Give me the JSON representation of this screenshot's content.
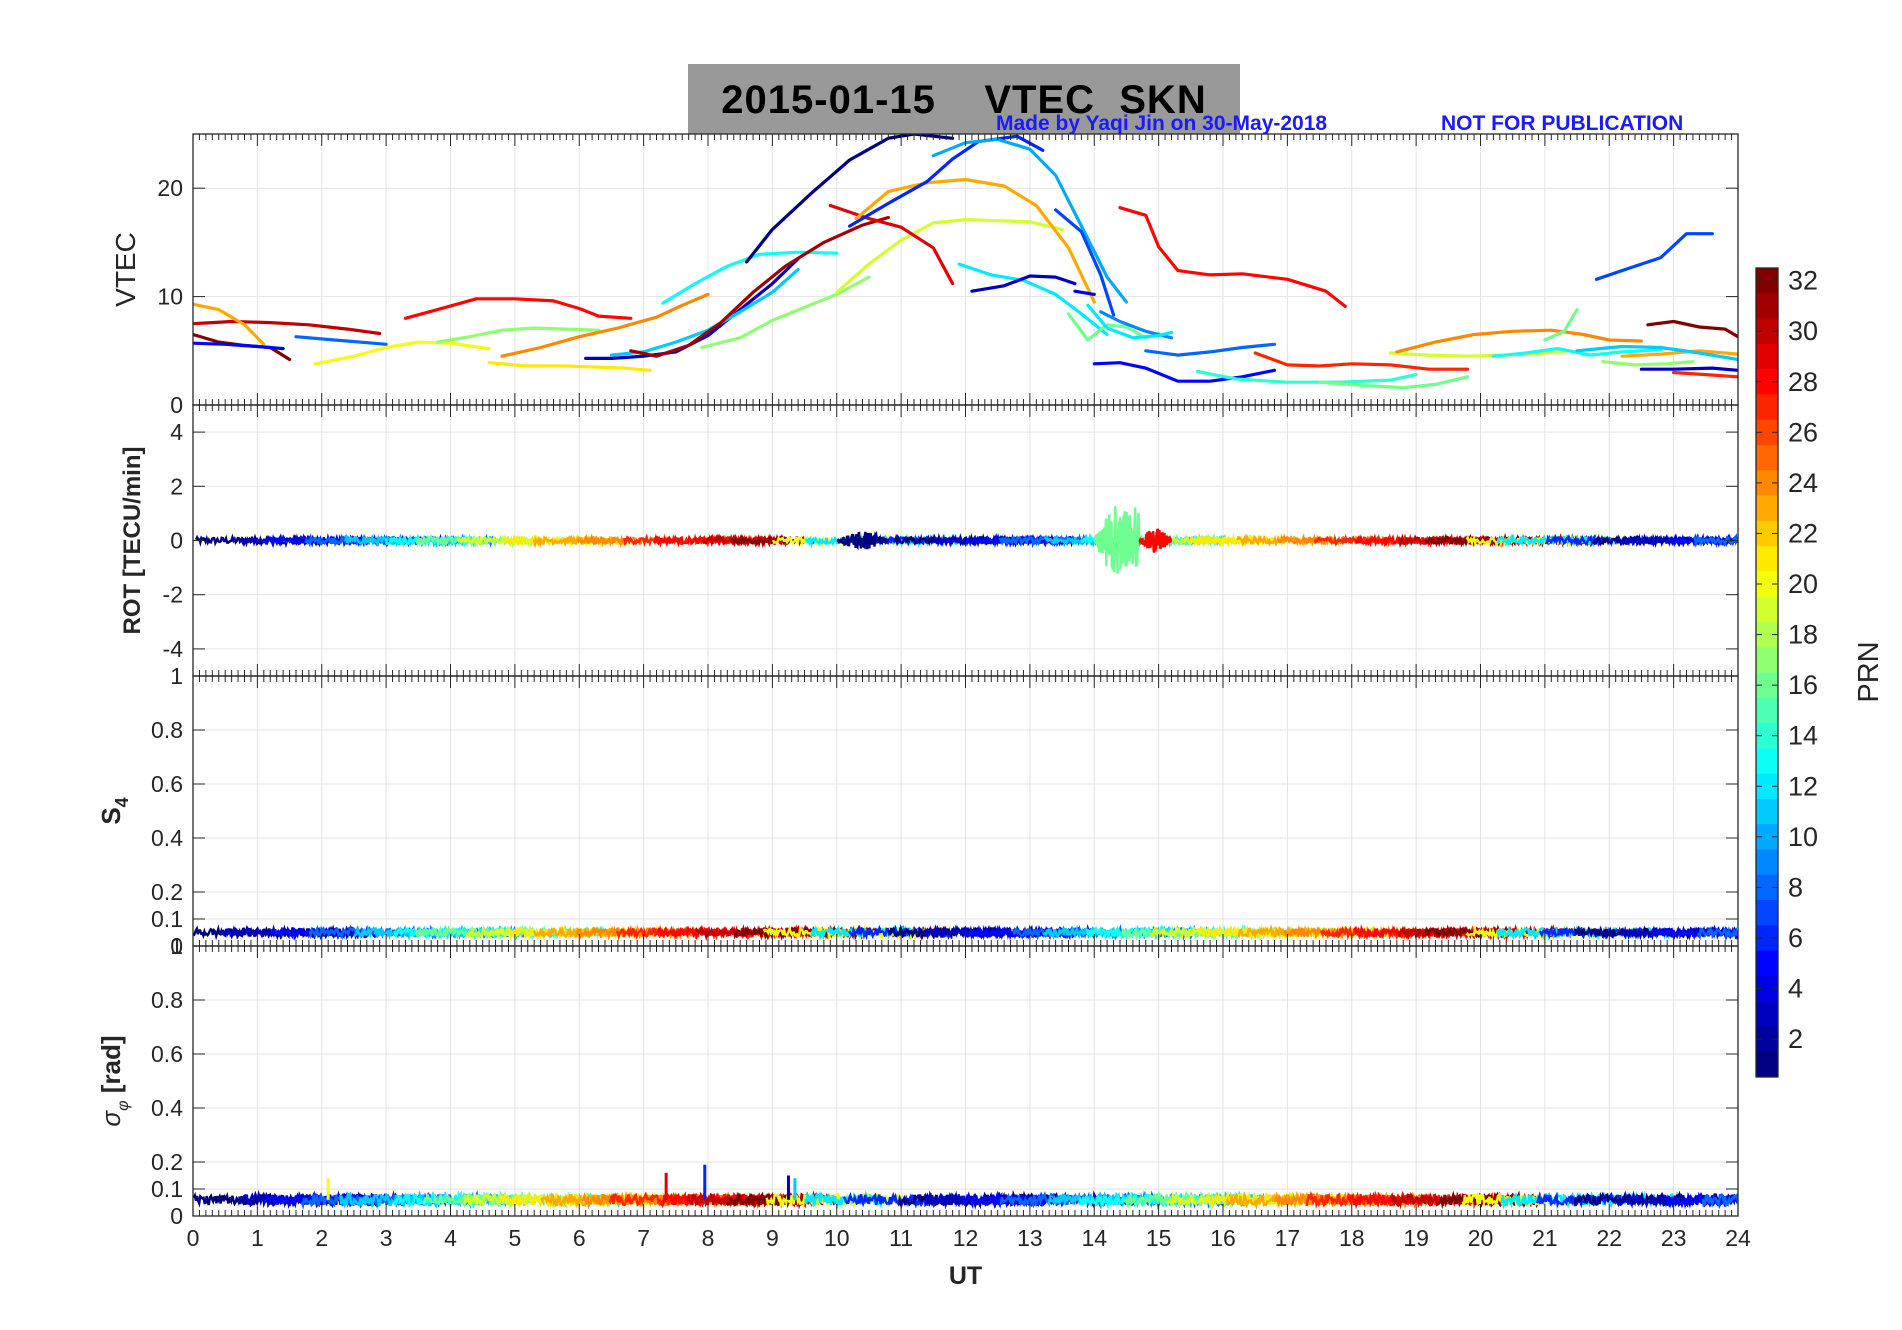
{
  "header": {
    "title": "2015-01-15    VTEC  SKN",
    "credit": "Made by Yaqi Jin on 30-May-2018",
    "notice": "NOT FOR PUBLICATION"
  },
  "colorbar": {
    "label": "PRN",
    "range": [
      1,
      32
    ],
    "ticks": [
      2,
      4,
      6,
      8,
      10,
      12,
      14,
      16,
      18,
      20,
      22,
      24,
      26,
      28,
      30,
      32
    ],
    "colormap": "jet"
  },
  "chart_data": [
    {
      "type": "line",
      "panel": "VTEC",
      "ylabel": "VTEC",
      "xlabel": "",
      "xlim": [
        0,
        24
      ],
      "ylim": [
        0,
        25
      ],
      "yticks": [
        0,
        10,
        20
      ],
      "grid": true,
      "series": [
        {
          "prn": 30,
          "x": [
            0,
            0.3,
            0.6,
            1.2,
            1.8,
            2.4,
            2.9
          ],
          "y": [
            7.5,
            7.6,
            7.7,
            7.6,
            7.4,
            7.0,
            6.6
          ]
        },
        {
          "prn": 32,
          "x": [
            0,
            0.4,
            0.8,
            1.2,
            1.5
          ],
          "y": [
            6.5,
            5.8,
            5.5,
            5.3,
            4.2
          ]
        },
        {
          "prn": 23,
          "x": [
            0,
            0.4,
            0.8,
            1.1
          ],
          "y": [
            9.3,
            8.8,
            7.4,
            5.6
          ]
        },
        {
          "prn": 5,
          "x": [
            0,
            0.5,
            1.0,
            1.4
          ],
          "y": [
            5.7,
            5.6,
            5.4,
            5.2
          ]
        },
        {
          "prn": 8,
          "x": [
            1.6,
            2.2,
            2.8,
            3.0
          ],
          "y": [
            6.3,
            6.0,
            5.7,
            5.6
          ]
        },
        {
          "prn": 20,
          "x": [
            1.9,
            2.5,
            3.0,
            3.5,
            4.0,
            4.6
          ],
          "y": [
            3.8,
            4.5,
            5.3,
            5.8,
            5.7,
            5.2
          ]
        },
        {
          "prn": 28,
          "x": [
            3.3,
            3.8,
            4.4,
            5.0,
            5.6,
            6.0,
            6.3,
            6.8
          ],
          "y": [
            8.0,
            8.8,
            9.8,
            9.8,
            9.6,
            8.9,
            8.2,
            8.0
          ]
        },
        {
          "prn": 17,
          "x": [
            3.8,
            4.3,
            4.8,
            5.3,
            5.8,
            6.3
          ],
          "y": [
            5.8,
            6.3,
            6.9,
            7.1,
            7.0,
            6.9
          ]
        },
        {
          "prn": 21,
          "x": [
            4.6,
            5.2,
            5.8,
            6.3,
            6.7,
            7.1
          ],
          "y": [
            3.9,
            3.6,
            3.6,
            3.5,
            3.4,
            3.2
          ]
        },
        {
          "prn": 24,
          "x": [
            4.8,
            5.4,
            6.0,
            6.6,
            7.2,
            7.6,
            8.0
          ],
          "y": [
            4.5,
            5.3,
            6.3,
            7.1,
            8.1,
            9.2,
            10.2
          ]
        },
        {
          "prn": 3,
          "x": [
            6.1,
            6.5,
            7.0,
            7.5,
            8.0,
            8.5,
            9.0,
            9.4
          ],
          "y": [
            4.3,
            4.3,
            4.5,
            4.9,
            6.4,
            8.8,
            11.2,
            13.5
          ]
        },
        {
          "prn": 11,
          "x": [
            6.5,
            7.0,
            7.5,
            8.0,
            8.5,
            9.0,
            9.4
          ],
          "y": [
            4.6,
            4.9,
            5.8,
            6.9,
            8.6,
            10.4,
            12.5
          ]
        },
        {
          "prn": 13,
          "x": [
            7.3,
            7.8,
            8.3,
            8.8,
            9.4,
            10.0
          ],
          "y": [
            9.4,
            11.2,
            12.8,
            13.9,
            14.1,
            14.0
          ]
        },
        {
          "prn": 31,
          "x": [
            6.8,
            7.2,
            7.7,
            8.2,
            8.7,
            9.2,
            9.8,
            10.4,
            10.8
          ],
          "y": [
            5.0,
            4.5,
            5.5,
            7.6,
            10.4,
            12.8,
            15.0,
            16.6,
            17.3
          ]
        },
        {
          "prn": 1,
          "x": [
            8.6,
            9.0,
            9.6,
            10.2,
            10.8,
            11.2,
            11.8
          ],
          "y": [
            13.2,
            16.2,
            19.5,
            22.6,
            24.6,
            25.0,
            24.6
          ]
        },
        {
          "prn": 17,
          "x": [
            7.9,
            8.5,
            9.0,
            9.5,
            10.0,
            10.5
          ],
          "y": [
            5.3,
            6.2,
            7.8,
            9.0,
            10.2,
            11.8
          ]
        },
        {
          "prn": 19,
          "x": [
            10.0,
            10.5,
            11.0,
            11.5,
            12.0,
            12.5,
            13.0,
            13.5
          ],
          "y": [
            10.4,
            13.0,
            15.2,
            16.8,
            17.1,
            17.0,
            16.9,
            16.2
          ]
        },
        {
          "prn": 29,
          "x": [
            9.9,
            10.5,
            11.0,
            11.5,
            11.8
          ],
          "y": [
            18.4,
            17.2,
            16.4,
            14.5,
            11.2
          ]
        },
        {
          "prn": 23,
          "x": [
            10.3,
            10.8,
            11.4,
            12.0,
            12.6,
            13.1,
            13.6,
            14.0
          ],
          "y": [
            17.2,
            19.7,
            20.5,
            20.8,
            20.2,
            18.4,
            14.5,
            9.5
          ]
        },
        {
          "prn": 6,
          "x": [
            10.2,
            10.8,
            11.4,
            11.8,
            12.2,
            12.8,
            13.2
          ],
          "y": [
            16.5,
            18.6,
            20.6,
            22.7,
            24.3,
            24.8,
            23.5
          ]
        },
        {
          "prn": 10,
          "x": [
            11.5,
            12.0,
            12.5,
            13.0,
            13.4,
            13.8,
            14.2,
            14.5
          ],
          "y": [
            23.0,
            24.2,
            24.5,
            23.6,
            21.2,
            16.5,
            11.8,
            9.5
          ]
        },
        {
          "prn": 12,
          "x": [
            11.9,
            12.4,
            12.9,
            13.4,
            13.8,
            14.2
          ],
          "y": [
            13.0,
            12.0,
            11.5,
            10.2,
            8.4,
            6.5
          ]
        },
        {
          "prn": 3,
          "x": [
            12.1,
            12.6,
            13.0,
            13.4,
            13.7
          ],
          "y": [
            10.5,
            11.0,
            11.9,
            11.8,
            11.2
          ]
        },
        {
          "prn": 4,
          "x": [
            13.7,
            14.0
          ],
          "y": [
            10.5,
            10.2
          ]
        },
        {
          "prn": 7,
          "x": [
            13.4,
            13.8,
            14.1,
            14.3
          ],
          "y": [
            18.0,
            16.0,
            12.0,
            8.3
          ]
        },
        {
          "prn": 16,
          "x": [
            13.6,
            13.9,
            14.2,
            14.5,
            14.8,
            15.0
          ],
          "y": [
            8.4,
            6.0,
            7.4,
            7.2,
            6.2,
            6.6
          ]
        },
        {
          "prn": 9,
          "x": [
            14.1,
            14.4,
            14.8,
            15.2
          ],
          "y": [
            8.6,
            7.7,
            6.8,
            6.2
          ]
        },
        {
          "prn": 28,
          "x": [
            14.4,
            14.8,
            15.0,
            15.3,
            15.8,
            16.3,
            17.0,
            17.6,
            17.9
          ],
          "y": [
            18.2,
            17.5,
            14.6,
            12.4,
            12.0,
            12.1,
            11.6,
            10.5,
            9.1
          ]
        },
        {
          "prn": 12,
          "x": [
            13.9,
            14.2,
            14.6,
            15.0,
            15.2
          ],
          "y": [
            9.2,
            7.1,
            6.2,
            6.4,
            6.7
          ]
        },
        {
          "prn": 5,
          "x": [
            14.0,
            14.4,
            14.8,
            15.3,
            15.8,
            16.3,
            16.8
          ],
          "y": [
            3.8,
            3.9,
            3.4,
            2.2,
            2.2,
            2.6,
            3.2
          ]
        },
        {
          "prn": 8,
          "x": [
            14.8,
            15.3,
            15.8,
            16.3,
            16.8
          ],
          "y": [
            5.0,
            4.6,
            4.9,
            5.3,
            5.6
          ]
        },
        {
          "prn": 14,
          "x": [
            15.6,
            16.2,
            17.0,
            17.8,
            18.6,
            19.0
          ],
          "y": [
            3.1,
            2.4,
            2.1,
            2.1,
            2.3,
            2.8
          ]
        },
        {
          "prn": 27,
          "x": [
            16.5,
            17.0,
            17.5,
            18.0,
            18.6,
            19.2,
            19.8
          ],
          "y": [
            4.8,
            3.7,
            3.6,
            3.8,
            3.7,
            3.3,
            3.3
          ]
        },
        {
          "prn": 16,
          "x": [
            17.5,
            18.2,
            18.8,
            19.3,
            19.8
          ],
          "y": [
            2.1,
            1.8,
            1.6,
            1.9,
            2.6
          ]
        },
        {
          "prn": 19,
          "x": [
            18.6,
            19.2,
            19.8,
            20.4,
            21.0,
            21.4
          ],
          "y": [
            4.8,
            4.6,
            4.5,
            4.6,
            4.8,
            5.0
          ]
        },
        {
          "prn": 24,
          "x": [
            18.7,
            19.3,
            19.9,
            20.5,
            21.1,
            21.6,
            22.0,
            22.5
          ],
          "y": [
            4.9,
            5.8,
            6.5,
            6.8,
            6.9,
            6.5,
            6.0,
            5.9
          ]
        },
        {
          "prn": 13,
          "x": [
            20.2,
            20.7,
            21.2,
            21.7,
            22.2,
            22.8
          ],
          "y": [
            4.5,
            4.8,
            5.2,
            4.6,
            4.9,
            5.1
          ]
        },
        {
          "prn": 16,
          "x": [
            21.0,
            21.3,
            21.5
          ],
          "y": [
            6.0,
            6.8,
            8.8
          ]
        },
        {
          "prn": 23,
          "x": [
            22.2,
            22.8,
            23.4,
            24.0
          ],
          "y": [
            4.5,
            4.7,
            5.0,
            4.7
          ]
        },
        {
          "prn": 7,
          "x": [
            21.8,
            22.3,
            22.8,
            23.2,
            23.6
          ],
          "y": [
            11.6,
            12.6,
            13.6,
            15.8,
            15.8
          ]
        },
        {
          "prn": 11,
          "x": [
            21.5,
            22.2,
            22.8,
            23.4,
            24.0
          ],
          "y": [
            5.0,
            5.4,
            5.3,
            4.8,
            4.2
          ]
        },
        {
          "prn": 17,
          "x": [
            21.9,
            22.4,
            22.9,
            23.3
          ],
          "y": [
            4.0,
            3.7,
            3.8,
            4.0
          ]
        },
        {
          "prn": 32,
          "x": [
            22.6,
            23.0,
            23.4,
            23.8,
            24.0
          ],
          "y": [
            7.4,
            7.7,
            7.2,
            7.0,
            6.3
          ]
        },
        {
          "prn": 3,
          "x": [
            22.5,
            23.0,
            23.6,
            24.0
          ],
          "y": [
            3.3,
            3.3,
            3.4,
            3.2
          ]
        },
        {
          "prn": 27,
          "x": [
            23.0,
            23.5,
            24.0
          ],
          "y": [
            3.0,
            2.8,
            2.6
          ]
        }
      ]
    },
    {
      "type": "line",
      "panel": "ROT",
      "ylabel": "ROT [TECU/min]",
      "xlabel": "",
      "xlim": [
        0,
        24
      ],
      "ylim": [
        -5,
        5
      ],
      "yticks": [
        -4,
        -2,
        0,
        2,
        4
      ],
      "grid": true,
      "baseline": 0,
      "spread": 0.12,
      "disturbances": [
        {
          "prn": 16,
          "x_range": [
            14.0,
            14.7
          ],
          "amplitude": 1.3
        },
        {
          "prn": 1,
          "x_range": [
            10.0,
            10.8
          ],
          "amplitude": 0.35
        },
        {
          "prn": 28,
          "x_range": [
            14.7,
            15.2
          ],
          "amplitude": 0.45
        }
      ]
    },
    {
      "type": "line",
      "panel": "S4",
      "ylabel": "S4",
      "xlabel": "",
      "xlim": [
        0,
        24
      ],
      "ylim": [
        0,
        1
      ],
      "yticks": [
        0,
        0.1,
        0.2,
        0.4,
        0.6,
        0.8,
        1
      ],
      "grid": true,
      "baseline": 0.05,
      "spread": 0.015
    },
    {
      "type": "line",
      "panel": "sigma_phi",
      "ylabel": "σφ [rad]",
      "xlabel": "UT",
      "xlim": [
        0,
        24
      ],
      "ylim": [
        0,
        1
      ],
      "yticks": [
        0,
        0.1,
        0.2,
        0.4,
        0.6,
        0.8,
        1
      ],
      "xticks": [
        0,
        1,
        2,
        3,
        4,
        5,
        6,
        7,
        8,
        9,
        10,
        11,
        12,
        13,
        14,
        15,
        16,
        17,
        18,
        19,
        20,
        21,
        22,
        23,
        24
      ],
      "grid": true,
      "baseline": 0.06,
      "spread": 0.02,
      "spikes": [
        {
          "prn": 6,
          "x": 7.95,
          "y": 0.19
        },
        {
          "prn": 29,
          "x": 7.35,
          "y": 0.16
        },
        {
          "prn": 3,
          "x": 9.25,
          "y": 0.15
        },
        {
          "prn": 11,
          "x": 9.35,
          "y": 0.14
        },
        {
          "prn": 20,
          "x": 2.1,
          "y": 0.14
        }
      ]
    }
  ]
}
